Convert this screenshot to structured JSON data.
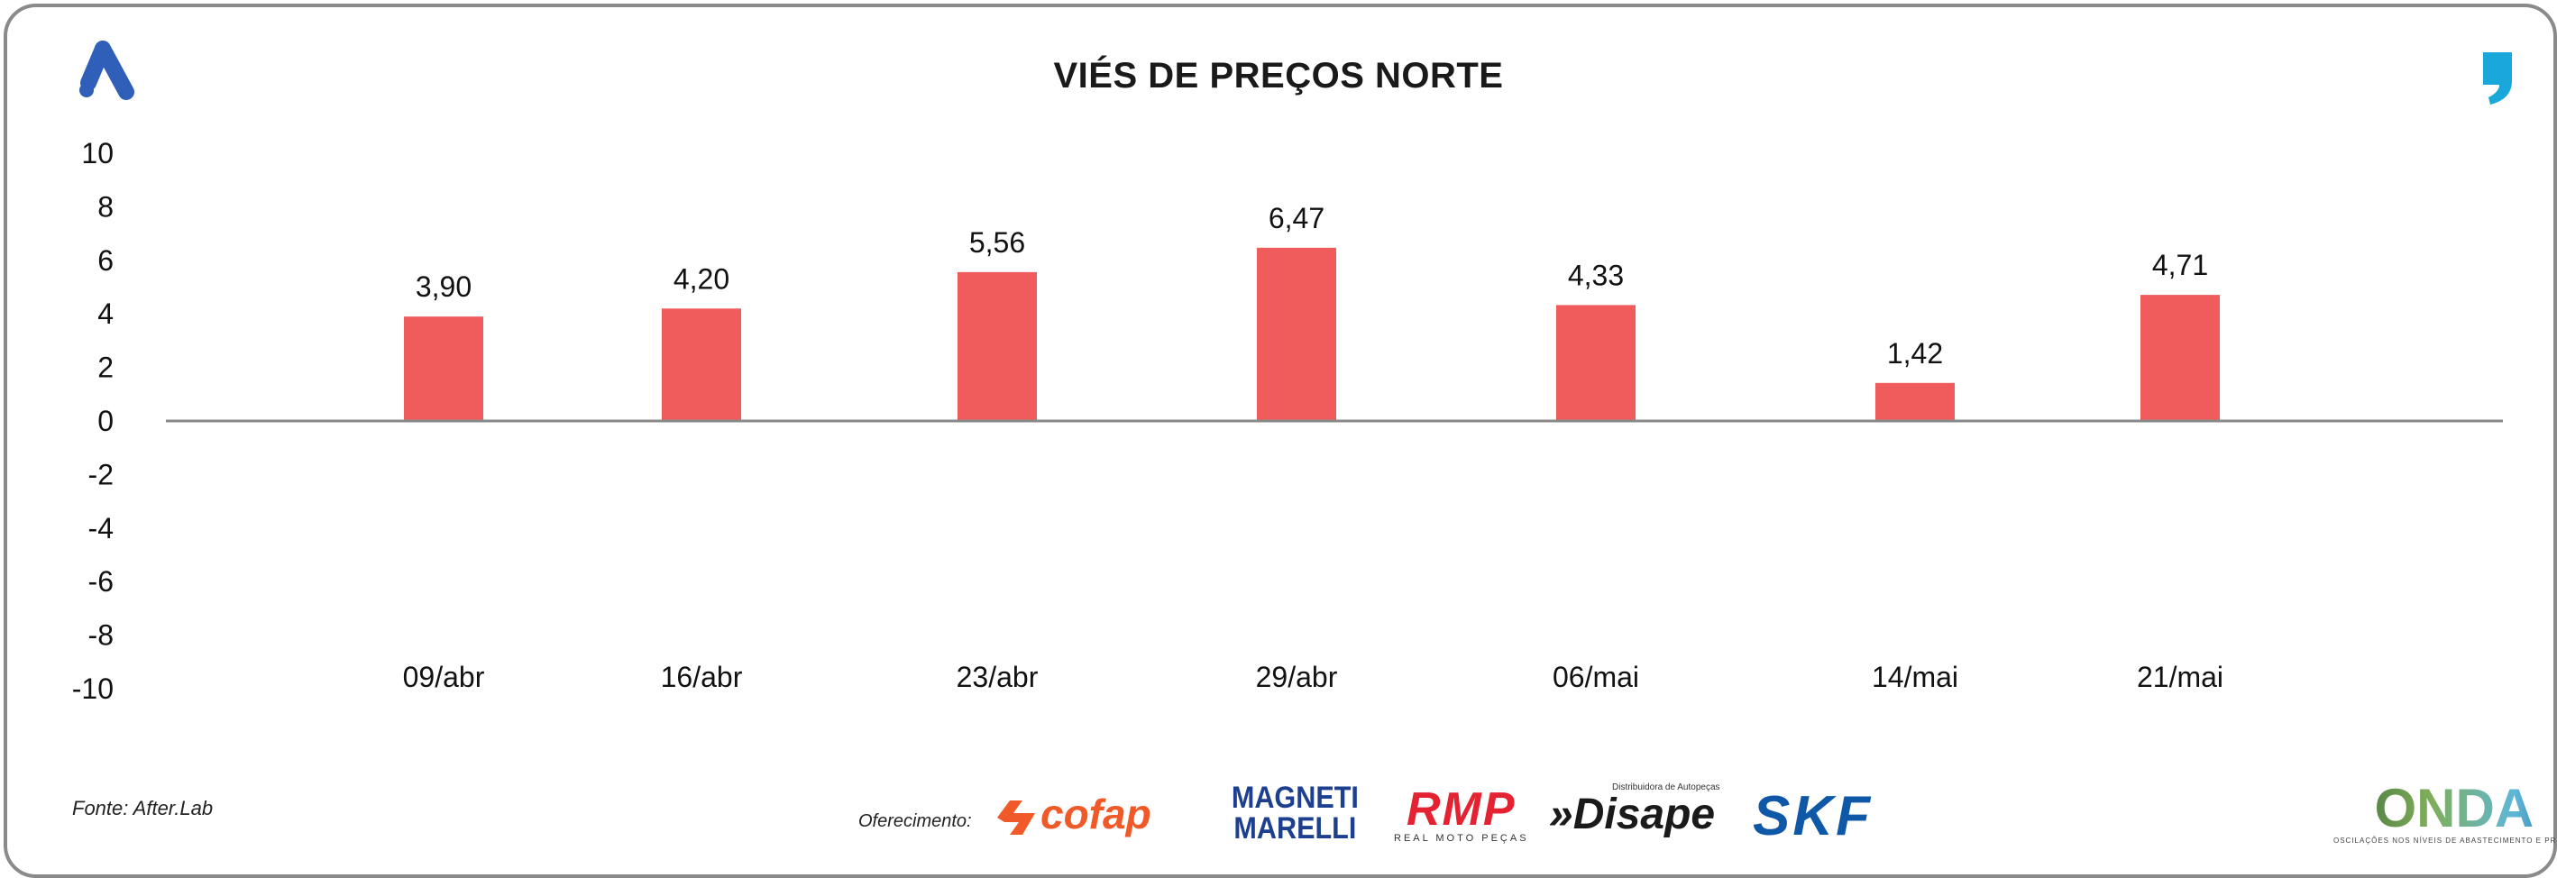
{
  "chart_data": {
    "type": "bar",
    "title": "VIÉS DE PREÇOS NORTE",
    "categories": [
      "09/abr",
      "16/abr",
      "23/abr",
      "29/abr",
      "06/mai",
      "14/mai",
      "21/mai"
    ],
    "values": [
      3.9,
      4.2,
      5.56,
      6.47,
      4.33,
      1.42,
      4.71
    ],
    "value_labels": [
      "3,90",
      "4,20",
      "5,56",
      "6,47",
      "4,33",
      "1,42",
      "4,71"
    ],
    "ylim": [
      -10,
      10
    ],
    "yticks": [
      10,
      8,
      6,
      4,
      2,
      0,
      -2,
      -4,
      -6,
      -8,
      -10
    ],
    "xlabel": "",
    "ylabel": "",
    "grid": false,
    "legend": "none",
    "bar_color": "#f05b5b"
  },
  "footer": {
    "source": "Fonte: After.Lab",
    "sponsor_label": "Oferecimento:",
    "logos": {
      "cofap": "cofap",
      "magneti_line1": "MAGNETI",
      "magneti_line2": "MARELLI",
      "rmp": "RMP",
      "rmp_sub": "REAL MOTO PEÇAS",
      "disape_tag": "Distribuidora de Autopeças",
      "disape": "»Disape",
      "skf": "SKF",
      "onda": "ONDA",
      "onda_sub": "OSCILAÇÕES NOS NÍVEIS DE ABASTECIMENTO E PREÇO"
    }
  },
  "colors": {
    "brand_left": "#2f5fb8",
    "brand_right": "#1aa7d9",
    "axis_line": "#888888"
  }
}
